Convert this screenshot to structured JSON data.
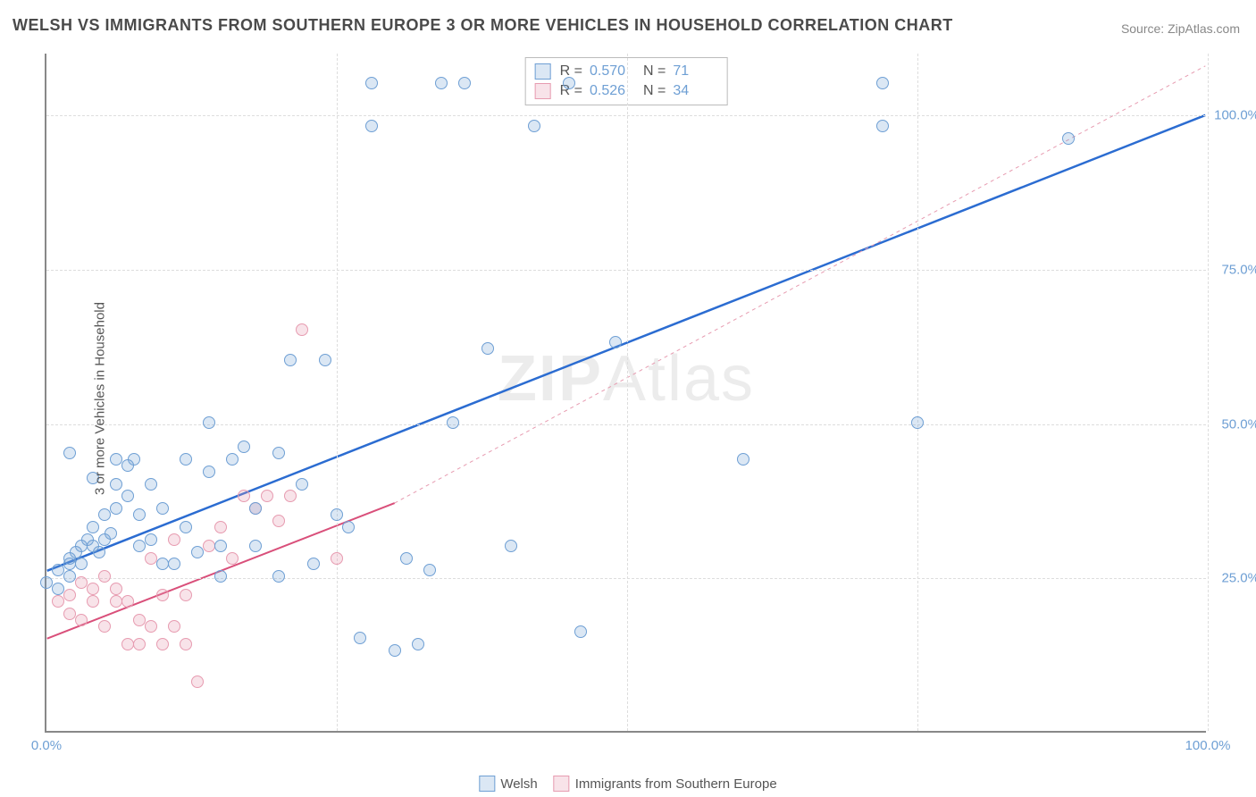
{
  "title": "WELSH VS IMMIGRANTS FROM SOUTHERN EUROPE 3 OR MORE VEHICLES IN HOUSEHOLD CORRELATION CHART",
  "source": "Source: ZipAtlas.com",
  "ylabel": "3 or more Vehicles in Household",
  "watermark_bold": "ZIP",
  "watermark_rest": "Atlas",
  "chart": {
    "type": "scatter",
    "background_color": "#ffffff",
    "grid_color": "#dddddd",
    "axis_color": "#888888",
    "xlim": [
      0,
      100
    ],
    "ylim": [
      0,
      110
    ],
    "xtick_labels": [
      "0.0%",
      "100.0%"
    ],
    "xtick_positions": [
      0,
      100
    ],
    "ytick_labels": [
      "25.0%",
      "50.0%",
      "75.0%",
      "100.0%"
    ],
    "ytick_positions": [
      25,
      50,
      75,
      100
    ],
    "vgrid_positions": [
      25,
      50,
      75,
      100
    ],
    "marker_radius": 7,
    "marker_border_width": 1.5,
    "fill_opacity": 0.25
  },
  "series": [
    {
      "name": "Welsh",
      "color": "#6e9fd4",
      "fill": "rgba(110,159,212,0.25)",
      "R_label": "R =",
      "R": "0.570",
      "N_label": "N =",
      "N": "71",
      "regression": {
        "x1": 0,
        "y1": 26,
        "x2": 100,
        "y2": 100,
        "dash": "none",
        "width": 2.5
      },
      "regression_ext": null,
      "points": [
        [
          0,
          24
        ],
        [
          1,
          23
        ],
        [
          1,
          26
        ],
        [
          2,
          25
        ],
        [
          2,
          28
        ],
        [
          2,
          27
        ],
        [
          2.5,
          29
        ],
        [
          3,
          30
        ],
        [
          3,
          27
        ],
        [
          3.5,
          31
        ],
        [
          4,
          30
        ],
        [
          4,
          33
        ],
        [
          4.5,
          29
        ],
        [
          5,
          31
        ],
        [
          5,
          35
        ],
        [
          5.5,
          32
        ],
        [
          6,
          36
        ],
        [
          6,
          40
        ],
        [
          7,
          43
        ],
        [
          7,
          38
        ],
        [
          7.5,
          44
        ],
        [
          8,
          35
        ],
        [
          8,
          30
        ],
        [
          9,
          31
        ],
        [
          9,
          40
        ],
        [
          10,
          36
        ],
        [
          10,
          27
        ],
        [
          11,
          27
        ],
        [
          12,
          44
        ],
        [
          12,
          33
        ],
        [
          13,
          29
        ],
        [
          14,
          42
        ],
        [
          14,
          50
        ],
        [
          15,
          25
        ],
        [
          15,
          30
        ],
        [
          16,
          44
        ],
        [
          17,
          46
        ],
        [
          18,
          30
        ],
        [
          18,
          36
        ],
        [
          20,
          45
        ],
        [
          20,
          25
        ],
        [
          21,
          60
        ],
        [
          22,
          40
        ],
        [
          23,
          27
        ],
        [
          24,
          60
        ],
        [
          25,
          35
        ],
        [
          26,
          33
        ],
        [
          27,
          15
        ],
        [
          28,
          98
        ],
        [
          28,
          105
        ],
        [
          30,
          13
        ],
        [
          31,
          28
        ],
        [
          32,
          14
        ],
        [
          33,
          26
        ],
        [
          34,
          105
        ],
        [
          35,
          50
        ],
        [
          36,
          105
        ],
        [
          38,
          62
        ],
        [
          40,
          30
        ],
        [
          42,
          98
        ],
        [
          45,
          105
        ],
        [
          46,
          16
        ],
        [
          49,
          63
        ],
        [
          60,
          44
        ],
        [
          72,
          105
        ],
        [
          72,
          98
        ],
        [
          75,
          50
        ],
        [
          88,
          96
        ],
        [
          2,
          45
        ],
        [
          6,
          44
        ],
        [
          4,
          41
        ]
      ]
    },
    {
      "name": "Immigrants from Southern Europe",
      "color": "#e79bb0",
      "fill": "rgba(231,155,176,0.28)",
      "R_label": "R =",
      "R": "0.526",
      "N_label": "N =",
      "N": "34",
      "regression": {
        "x1": 0,
        "y1": 15,
        "x2": 30,
        "y2": 37,
        "dash": "none",
        "width": 2
      },
      "regression_ext": {
        "x1": 30,
        "y1": 37,
        "x2": 100,
        "y2": 108,
        "dash": "4,4",
        "width": 1
      },
      "points": [
        [
          1,
          21
        ],
        [
          2,
          19
        ],
        [
          2,
          22
        ],
        [
          3,
          18
        ],
        [
          3,
          24
        ],
        [
          4,
          21
        ],
        [
          4,
          23
        ],
        [
          5,
          17
        ],
        [
          5,
          25
        ],
        [
          6,
          21
        ],
        [
          6,
          23
        ],
        [
          7,
          21
        ],
        [
          7,
          14
        ],
        [
          8,
          18
        ],
        [
          8,
          14
        ],
        [
          9,
          17
        ],
        [
          9,
          28
        ],
        [
          10,
          22
        ],
        [
          10,
          14
        ],
        [
          11,
          17
        ],
        [
          11,
          31
        ],
        [
          12,
          14
        ],
        [
          12,
          22
        ],
        [
          13,
          8
        ],
        [
          14,
          30
        ],
        [
          15,
          33
        ],
        [
          16,
          28
        ],
        [
          17,
          38
        ],
        [
          18,
          36
        ],
        [
          19,
          38
        ],
        [
          20,
          34
        ],
        [
          21,
          38
        ],
        [
          22,
          65
        ],
        [
          25,
          28
        ]
      ]
    }
  ],
  "bottom_legend": [
    {
      "label": "Welsh",
      "color": "#6e9fd4",
      "fill": "rgba(110,159,212,0.25)"
    },
    {
      "label": "Immigrants from Southern Europe",
      "color": "#e79bb0",
      "fill": "rgba(231,155,176,0.28)"
    }
  ]
}
